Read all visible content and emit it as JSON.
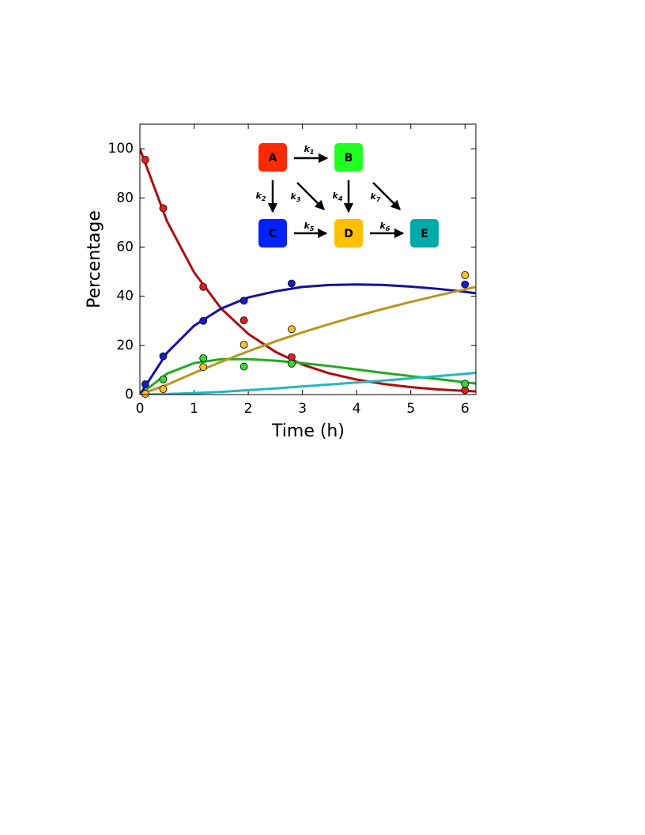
{
  "chart_data": {
    "type": "line",
    "xlabel": "Time (h)",
    "ylabel": "Percentage",
    "xlim": [
      0,
      6.2
    ],
    "ylim": [
      0,
      110
    ],
    "xticks": [
      0,
      1,
      2,
      3,
      4,
      5,
      6
    ],
    "yticks": [
      0,
      20,
      40,
      60,
      80,
      100
    ],
    "x": [
      0,
      0.5,
      1,
      1.5,
      2,
      2.5,
      3,
      3.5,
      4,
      4.5,
      5,
      5.5,
      6,
      6.2
    ],
    "series": [
      {
        "color": "#b00c0c",
        "marker_color": "#dd2020",
        "values": [
          100,
          70.5,
          49.7,
          35,
          24.7,
          17.4,
          12.2,
          8.6,
          6.1,
          4.3,
          3.0,
          2.1,
          1.5,
          1.3
        ],
        "points": {
          "x": [
            0.1,
            0.43,
            1.17,
            1.92,
            2.8,
            6.0
          ],
          "values": [
            95.5,
            75.8,
            43.8,
            30.2,
            15.2,
            1.8
          ]
        }
      },
      {
        "color": "#22aa22",
        "marker_color": "#33dd33",
        "values": [
          0,
          8.5,
          12.8,
          14.4,
          14.4,
          13.8,
          12.8,
          11.6,
          10.2,
          8.8,
          7.5,
          6.3,
          5.0,
          4.5
        ],
        "points": {
          "x": [
            0.43,
            1.17,
            1.92,
            2.8,
            6.0
          ],
          "values": [
            6.2,
            14.8,
            11.4,
            12.6,
            4.4
          ]
        }
      },
      {
        "color": "#1212a0",
        "marker_color": "#1a1acc",
        "values": [
          0,
          17,
          28,
          35,
          39.5,
          42,
          43.8,
          44.6,
          44.8,
          44.6,
          43.9,
          43,
          41.8,
          41.2
        ],
        "points": {
          "x": [
            0.1,
            0.43,
            1.17,
            1.92,
            2.8,
            6.0
          ],
          "values": [
            4.2,
            15.6,
            30,
            38.2,
            45.2,
            44.8
          ]
        }
      },
      {
        "color": "#b8961e",
        "marker_color": "#ffc020",
        "values": [
          0,
          4,
          8.8,
          13.3,
          17.6,
          21.6,
          25.3,
          28.7,
          31.9,
          34.9,
          37.7,
          40.3,
          42.8,
          43.8
        ],
        "points": {
          "x": [
            0.1,
            0.43,
            1.17,
            1.92,
            2.8,
            6.0
          ],
          "values": [
            0.3,
            2.2,
            11.2,
            20.3,
            26.6,
            48.6
          ]
        }
      },
      {
        "color": "#22b8c0",
        "values": [
          0,
          0.2,
          0.6,
          1.1,
          1.8,
          2.5,
          3.3,
          4.1,
          4.9,
          5.7,
          6.6,
          7.5,
          8.4,
          8.9
        ]
      }
    ]
  },
  "diagram": {
    "nodes": [
      {
        "label": "A",
        "color": "#ff2a00"
      },
      {
        "label": "B",
        "color": "#22ff22"
      },
      {
        "label": "C",
        "color": "#0022ff"
      },
      {
        "label": "D",
        "color": "#ffc000"
      },
      {
        "label": "E",
        "color": "#00aaaa"
      }
    ],
    "edges": [
      {
        "label": "k1"
      },
      {
        "label": "k2"
      },
      {
        "label": "k3"
      },
      {
        "label": "k4"
      },
      {
        "label": "k5"
      },
      {
        "label": "k6"
      },
      {
        "label": "k7"
      }
    ]
  }
}
